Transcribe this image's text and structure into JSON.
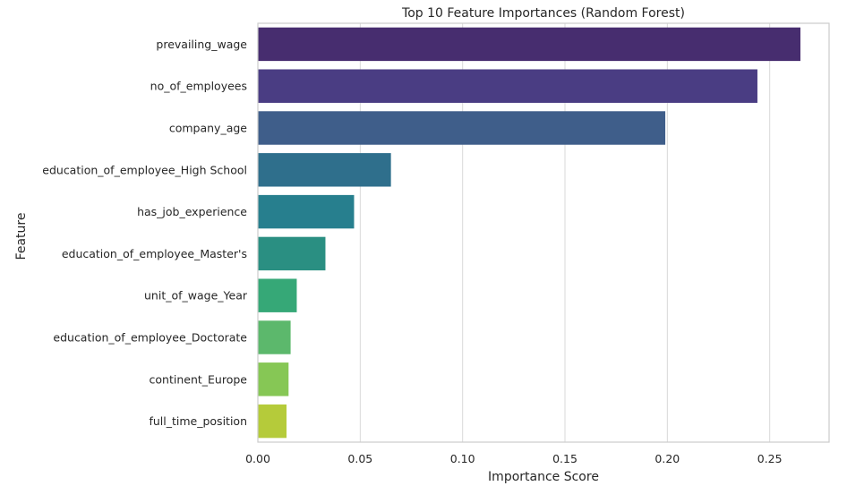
{
  "chart_data": {
    "type": "bar",
    "orientation": "horizontal",
    "title": "Top 10 Feature Importances (Random Forest)",
    "xlabel": "Importance Score",
    "ylabel": "Feature",
    "xlim": [
      0,
      0.279
    ],
    "xticks": [
      "0.00",
      "0.05",
      "0.10",
      "0.15",
      "0.20",
      "0.25"
    ],
    "xtick_values": [
      0,
      0.05,
      0.1,
      0.15,
      0.2,
      0.25
    ],
    "grid": "x",
    "categories": [
      "prevailing_wage",
      "no_of_employees",
      "company_age",
      "education_of_employee_High School",
      "has_job_experience",
      "education_of_employee_Master's",
      "unit_of_wage_Year",
      "education_of_employee_Doctorate",
      "continent_Europe",
      "full_time_position"
    ],
    "values": [
      0.265,
      0.244,
      0.199,
      0.065,
      0.047,
      0.033,
      0.019,
      0.016,
      0.015,
      0.014
    ],
    "colors": [
      "#472d6f",
      "#4a3d83",
      "#3f5e8a",
      "#2f6f8c",
      "#277f8e",
      "#2a8f82",
      "#36a877",
      "#5cb86c",
      "#86c755",
      "#b5cb3a"
    ],
    "grid_color": "#d9d9d9",
    "frame_color": "#cccccc"
  }
}
